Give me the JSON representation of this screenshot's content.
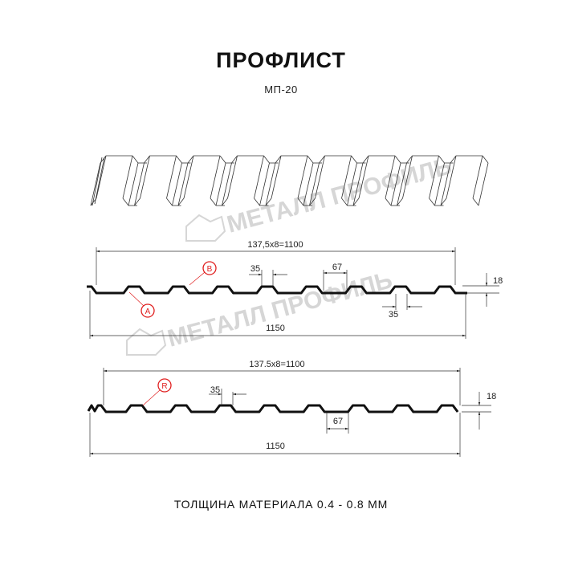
{
  "header": {
    "title": "ПРОФЛИСТ",
    "subtitle": "МП-20"
  },
  "watermark": "МЕТАЛЛ ПРОФИЛЬ",
  "profile_a": {
    "pitch_label": "137,5x8=1100",
    "total_label": "1150",
    "crest_label": "35",
    "trough_label": "35",
    "rib_base_label": "67",
    "height_label": "18",
    "marker_b": "B",
    "marker_a": "A"
  },
  "profile_b": {
    "pitch_label": "137.5x8=1100",
    "total_label": "1150",
    "crest_label": "35",
    "rib_base_label": "67",
    "height_label": "18",
    "marker_r": "R"
  },
  "footer": {
    "thickness": "ТОЛЩИНА МАТЕРИАЛА 0.4 - 0.8 ММ"
  },
  "colors": {
    "line": "#111111",
    "marker": "#e02020",
    "watermark": "#d6d6d6"
  }
}
